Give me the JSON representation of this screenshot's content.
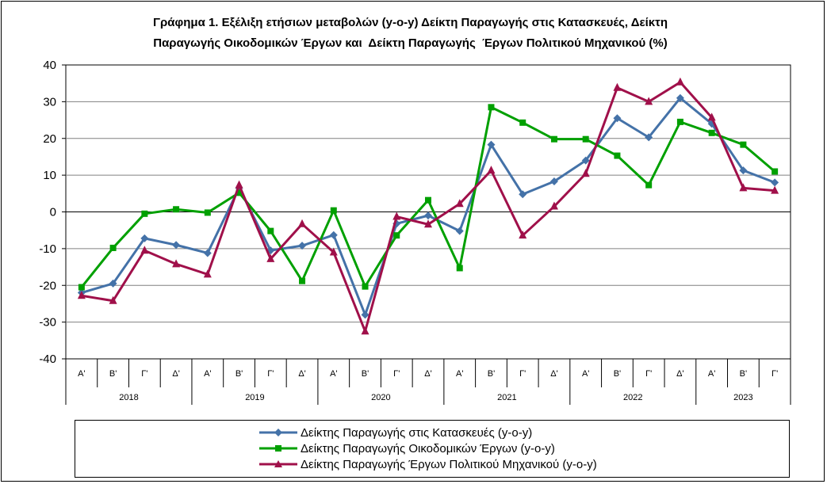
{
  "title_line1": "Γράφημα 1. Εξέλιξη ετήσιων μεταβολών (y-o-y) Δείκτη Παραγωγής στις Κατασκευές, Δείκτη",
  "title_line2": "Παραγωγής Οικοδομικών Έργων και  Δείκτη Παραγωγής  Έργων Πολιτικού Μηχανικού (%)",
  "chart_data": {
    "type": "line",
    "title": "Γράφημα 1. Εξέλιξη ετήσιων μεταβολών (y-o-y) Δείκτη Παραγωγής στις Κατασκευές, Δείκτη Παραγωγής Οικοδομικών Έργων και  Δείκτη Παραγωγής  Έργων Πολιτικού Μηχανικού (%)",
    "categories": [
      "Α'",
      "Β'",
      "Γ'",
      "Δ'",
      "Α'",
      "Β'",
      "Γ'",
      "Δ'",
      "Α'",
      "Β'",
      "Γ'",
      "Δ'",
      "Α'",
      "Β'",
      "Γ'",
      "Δ'",
      "Α'",
      "Β'",
      "Γ'",
      "Δ'",
      "Α'",
      "Β'",
      "Γ'"
    ],
    "years": [
      {
        "label": "2018",
        "quarters": 4
      },
      {
        "label": "2019",
        "quarters": 4
      },
      {
        "label": "2020",
        "quarters": 4
      },
      {
        "label": "2021",
        "quarters": 4
      },
      {
        "label": "2022",
        "quarters": 4
      },
      {
        "label": "2023",
        "quarters": 3
      }
    ],
    "ylim": [
      -40,
      40
    ],
    "yticks": [
      -40,
      -30,
      -20,
      -10,
      0,
      10,
      20,
      30,
      40
    ],
    "grid": true,
    "legend_position": "bottom",
    "series": [
      {
        "name": "Δείκτης Παραγωγής στις Κατασκευές (y-o-y)",
        "color": "#4472a8",
        "marker": "diamond",
        "values": [
          -22,
          -19.5,
          -7.2,
          -9,
          -11.2,
          6.5,
          -10.5,
          -9.2,
          -6.3,
          -28,
          -3.2,
          -1,
          -5.2,
          18.3,
          4.8,
          8.3,
          14,
          25.5,
          20.3,
          31,
          24,
          11.3,
          8
        ]
      },
      {
        "name": "Δείκτης Παραγωγής Οικοδομικών Έργων (y-o-y)",
        "color": "#00a000",
        "marker": "square",
        "values": [
          -20.5,
          -9.8,
          -0.5,
          0.7,
          -0.2,
          5.2,
          -5.2,
          -18.8,
          0.4,
          -20.3,
          -6.4,
          3.2,
          -15.3,
          28.5,
          24.3,
          19.8,
          19.8,
          15.3,
          7.3,
          24.5,
          21.5,
          18.3,
          11
        ]
      },
      {
        "name": "Δείκτης Παραγωγής Έργων Πολιτικού Μηχανικού (y-o-y)",
        "color": "#a0104a",
        "marker": "triangle",
        "values": [
          -22.8,
          -24.2,
          -10.5,
          -14.2,
          -17,
          7.3,
          -12.8,
          -3.3,
          -11,
          -32.5,
          -1.3,
          -3.4,
          2.2,
          11.3,
          -6.4,
          1.5,
          10.4,
          33.8,
          30,
          35.3,
          25.7,
          6.5,
          5.8
        ]
      }
    ]
  }
}
